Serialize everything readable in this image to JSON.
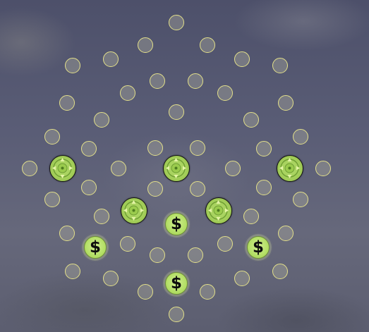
{
  "board": {
    "coin_symbol": "$",
    "colors": {
      "spot_border": "#e3e08a",
      "target_fill": "#a4cf5a",
      "coin_fill": "#b4df66"
    },
    "icons": {
      "target": "crosshair-target-icon",
      "coin": "dollar-coin-icon"
    }
  }
}
